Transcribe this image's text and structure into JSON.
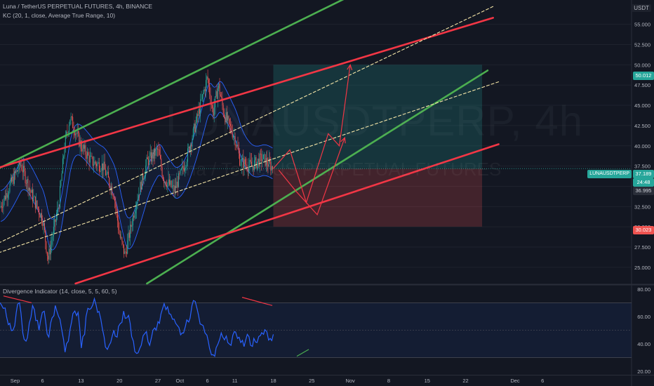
{
  "header": {
    "title": "Luna / TetherUS PERPETUAL FUTURES, 4h, BINANCE",
    "indicator": "KC (20, 1, close, Average True Range, 10)",
    "sub_indicator": "Divergence Indicator (14, close, 5, 5, 60, 5)"
  },
  "watermark": {
    "symbol": "LUNAUSDTPERP, 4h",
    "name": "Luna / TetherUS PERPETUAL FUTURES"
  },
  "currency": "USDT",
  "price_tags": {
    "target": "50.012",
    "symbol": "LUNAUSDTPERP",
    "last": "37.189",
    "countdown": "24:48",
    "low_tag": "36.995",
    "stop": "30.023"
  },
  "colors": {
    "up": "#26a69a",
    "down": "#ef5350",
    "red_line": "#f23645",
    "green_line": "#4caf50",
    "rsi": "#2962ff",
    "keltner": "#2962ff",
    "dashed": "#f5e6a8"
  },
  "chart_data": [
    {
      "type": "candlestick",
      "y_axis_ticks": [
        "55.000",
        "52.500",
        "50.000",
        "47.500",
        "45.000",
        "42.500",
        "40.000",
        "37.500",
        "35.000",
        "32.500",
        "30.000",
        "27.500",
        "25.000"
      ],
      "ylim": [
        23,
        58
      ],
      "x_axis_ticks": [
        "Sep",
        "6",
        "13",
        "20",
        "27",
        "Oct",
        "6",
        "11",
        "18",
        "25",
        "Nov",
        "8",
        "15",
        "22",
        "Dec",
        "6"
      ],
      "price_path": [
        {
          "date": "Aug 29",
          "price": 32
        },
        {
          "date": "Aug 31",
          "price": 35
        },
        {
          "date": "Sep 2",
          "price": 37.8
        },
        {
          "date": "Sep 4",
          "price": 34
        },
        {
          "date": "Sep 6",
          "price": 31
        },
        {
          "date": "Sep 7",
          "price": 26
        },
        {
          "date": "Sep 9",
          "price": 33
        },
        {
          "date": "Sep 10",
          "price": 40
        },
        {
          "date": "Sep 11",
          "price": 43.5
        },
        {
          "date": "Sep 13",
          "price": 40
        },
        {
          "date": "Sep 15",
          "price": 38
        },
        {
          "date": "Sep 17",
          "price": 37.5
        },
        {
          "date": "Sep 19",
          "price": 34
        },
        {
          "date": "Sep 20",
          "price": 29
        },
        {
          "date": "Sep 21",
          "price": 26.5
        },
        {
          "date": "Sep 23",
          "price": 33
        },
        {
          "date": "Sep 25",
          "price": 38
        },
        {
          "date": "Sep 27",
          "price": 39.5
        },
        {
          "date": "Sep 28",
          "price": 36
        },
        {
          "date": "Sep 30",
          "price": 34.5
        },
        {
          "date": "Oct 2",
          "price": 38
        },
        {
          "date": "Oct 4",
          "price": 43
        },
        {
          "date": "Oct 6",
          "price": 48.5
        },
        {
          "date": "Oct 7",
          "price": 44
        },
        {
          "date": "Oct 8",
          "price": 47.5
        },
        {
          "date": "Oct 9",
          "price": 44
        },
        {
          "date": "Oct 11",
          "price": 41
        },
        {
          "date": "Oct 12",
          "price": 38
        },
        {
          "date": "Oct 14",
          "price": 37.5
        },
        {
          "date": "Oct 16",
          "price": 38.5
        },
        {
          "date": "Oct 18",
          "price": 37.2
        }
      ],
      "trend_lines": [
        {
          "name": "upper green channel",
          "color": "green",
          "points": [
            [
              "Aug 29",
              37.2
            ],
            [
              "Nov 1",
              58.5
            ]
          ]
        },
        {
          "name": "upper red channel",
          "color": "red",
          "points": [
            [
              "Aug 29",
              37.3
            ],
            [
              "Nov 27",
              55.8
            ]
          ]
        },
        {
          "name": "lower green channel",
          "color": "green",
          "points": [
            [
              "Sep 25",
              23
            ],
            [
              "Nov 26",
              49.3
            ]
          ]
        },
        {
          "name": "lower red channel",
          "color": "red",
          "points": [
            [
              "Sep 12",
              23
            ],
            [
              "Nov 28",
              40.2
            ]
          ]
        },
        {
          "name": "dashed upper",
          "style": "dashed",
          "points": [
            [
              "Aug 29",
              28
            ],
            [
              "Nov 27",
              57.2
            ]
          ]
        },
        {
          "name": "dashed lower",
          "style": "dashed",
          "points": [
            [
              "Aug 29",
              26.8
            ],
            [
              "Nov 28",
              47.9
            ]
          ]
        }
      ],
      "projection": [
        [
          "Oct 18",
          37.2
        ],
        [
          "Oct 21",
          39.5
        ],
        [
          "Oct 24",
          33
        ],
        [
          "Oct 28",
          41.5
        ],
        [
          "Oct 30",
          40
        ],
        [
          "Nov 1",
          50
        ]
      ],
      "projection_alt": [
        [
          "Oct 19",
          37
        ],
        [
          "Oct 22",
          34.5
        ],
        [
          "Oct 26",
          31.5
        ],
        [
          "Oct 31",
          41
        ]
      ],
      "position": {
        "entry": 37.189,
        "target": 50.012,
        "stop": 30.023,
        "from": "Oct 18",
        "to": "Nov 25"
      }
    },
    {
      "type": "line",
      "name": "Divergence Indicator",
      "y_axis_ticks": [
        "80.00",
        "60.00",
        "40.00",
        "20.00"
      ],
      "ylim": [
        18,
        82
      ],
      "levels": [
        70,
        50,
        30
      ],
      "values": [
        70,
        66,
        60,
        55,
        50,
        63,
        70,
        48,
        42,
        55,
        68,
        57,
        50,
        63,
        57,
        45,
        59,
        68,
        60,
        50,
        34,
        42,
        56,
        64,
        63,
        37,
        47,
        66,
        66,
        73,
        63,
        58,
        45,
        36,
        41,
        50,
        45,
        55,
        64,
        59,
        55,
        42,
        33,
        37,
        46,
        49,
        39,
        50,
        50,
        55,
        66,
        65,
        62,
        58,
        55,
        52,
        48,
        53,
        56,
        68,
        71,
        61,
        54,
        48,
        42,
        32,
        31,
        40,
        48,
        43,
        41,
        39,
        49,
        44,
        41,
        38,
        47,
        39,
        44,
        41,
        46,
        47,
        49,
        44,
        47
      ]
    }
  ]
}
